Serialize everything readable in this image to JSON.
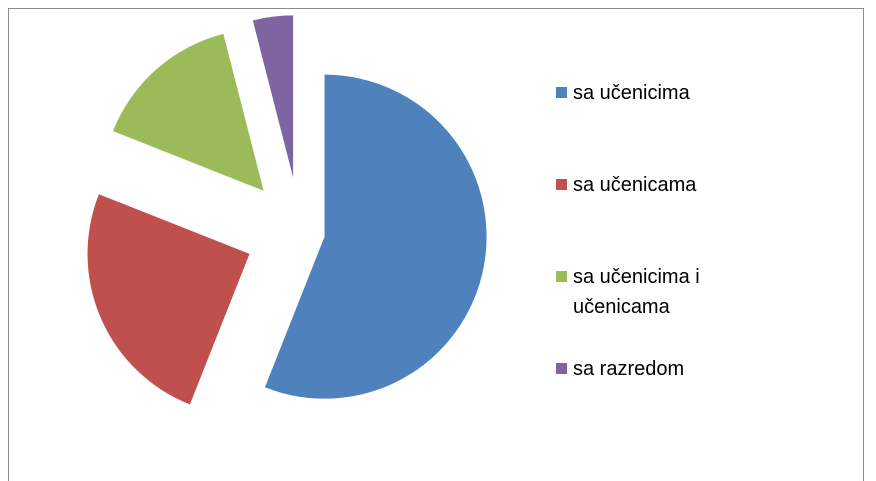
{
  "chart_data": {
    "type": "pie",
    "categories": [
      "sa učenicima",
      "sa učenicama",
      "sa učenicima i učenicama",
      "sa razredom"
    ],
    "values": [
      56,
      25,
      15,
      4
    ],
    "colors": [
      "#4f81bd",
      "#c0504d",
      "#9bbb59",
      "#8064a2"
    ],
    "legend": "right"
  }
}
